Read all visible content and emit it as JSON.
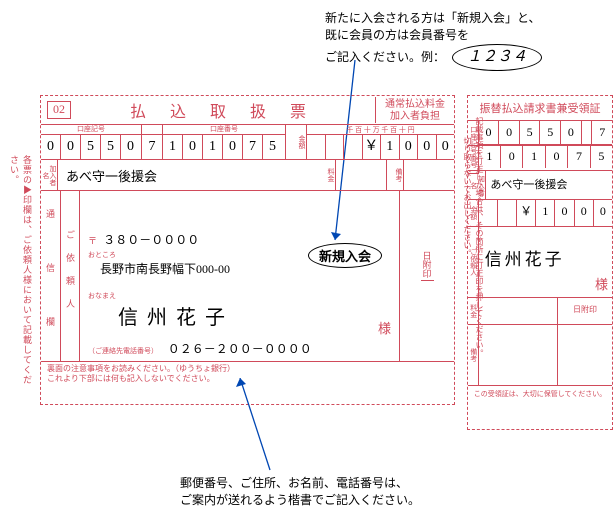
{
  "top_instruction": {
    "line1": "新たに入会される方は「新規入会」と、",
    "line2": "既に会員の方は会員番号を",
    "line3": "ご記入ください。例：",
    "example": "１２３４"
  },
  "left": {
    "code": "02",
    "title": "払 込 取 扱 票",
    "fee1": "通常払込料金",
    "fee2": "加入者負担",
    "sym_label": "口座記号",
    "num_label": "口座番号",
    "amt_label": "金額",
    "yen_header": "千 百 十 万 千 百 十 円",
    "sym_digits": [
      "0",
      "0",
      "5",
      "5",
      "0"
    ],
    "check": "7",
    "num_digits": [
      "1",
      "0",
      "1",
      "0",
      "7",
      "5"
    ],
    "yen": "￥",
    "amt_digits": [
      "1",
      "0",
      "0",
      "0"
    ],
    "payee_label": "加入者名",
    "payee": "あべ守一後援会",
    "fee_lbl": "料金",
    "remark_lbl": "備考",
    "comm_lbl": "通　信　欄",
    "sender_lbl": "ご依頼人",
    "postal_mark": "〒",
    "postal": "３８０－００００",
    "address_lbl": "おところ",
    "address": "長野市南長野幅下000-00",
    "name_lbl": "おなまえ",
    "name": "信 州 花 子",
    "sama": "様",
    "tel_lbl": "（ご連絡先電話番号）",
    "tel": "０２６－２００－００００",
    "date_lbl": "日附印",
    "foot1": "裏面の注意事項をお読みください。（ゆうちょ銀行）",
    "foot2": "これより下部には何も記入しないでください。"
  },
  "side_note_left": "各票の▶印欄は、ご依頼人様において記載してください。",
  "side_note_mid1": "切り取らないでお出しください。",
  "side_note_mid2": "記載事項を訂正した場合は、その箇所に訂正印を押してください。",
  "new_member": "新規入会",
  "right": {
    "title": "振替払込請求書兼受領証",
    "sym_lbl": "口座記号番号",
    "sym_band": "口座記号",
    "sym_digits": [
      "0",
      "0",
      "5",
      "5",
      "0"
    ],
    "check": "7",
    "num_digits": [
      "1",
      "0",
      "1",
      "0",
      "7",
      "5"
    ],
    "payee_lbl": "加入者名",
    "payee": "あべ守一後援会",
    "amt_lbl": "金額",
    "yen": "￥",
    "amt_digits": [
      "1",
      "0",
      "0",
      "0"
    ],
    "sender_lbl": "ご依頼人",
    "sender": "信州花子",
    "sama": "様",
    "fee_lbl": "料金",
    "date_lbl": "日附印",
    "remark_lbl": "備考",
    "foot": "この受領証は、大切に保管してください。"
  },
  "bottom_instruction": {
    "line1": "郵便番号、ご住所、お名前、電話番号は、",
    "line2": "ご案内が送れるよう楷書でご記入ください。"
  }
}
